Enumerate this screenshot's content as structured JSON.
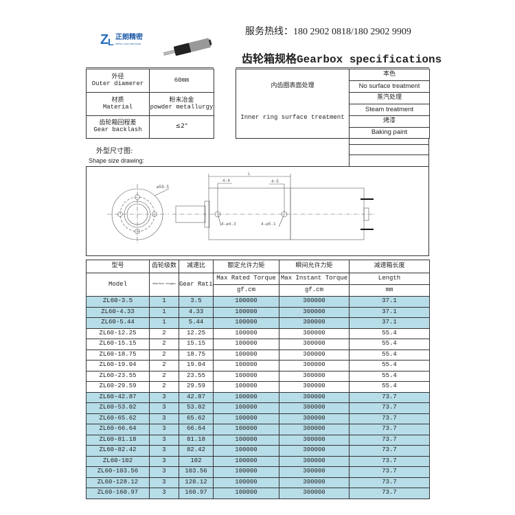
{
  "header": {
    "logo_text": "正朗精密",
    "logo_sub": "ZHENG LANG PRECISION",
    "hotline": "服务热线：180 2902 0818/180 2902 9909",
    "title": "齿轮箱规格Gearbox specifications"
  },
  "specs": [
    {
      "cn": "外径",
      "en": "Outer diamerer",
      "value": "60mm",
      "value_en": ""
    },
    {
      "cn": "材质",
      "en": "Material",
      "value": "粉末冶金",
      "value_en": "powder metallurgy"
    },
    {
      "cn": "齿轮箱回程差",
      "en": "Gear backlash",
      "value": "≤2°",
      "value_en": ""
    }
  ],
  "surface": {
    "cn": "内齿圈表面处理",
    "en": "Inner ring surface treatment",
    "options": [
      "本色",
      "No surface treatment",
      "蒸汽处理",
      "Steam treatment",
      "烤漆",
      "Baking paint"
    ]
  },
  "drawing": {
    "cn": "外型尺寸图:",
    "en": "Shape size drawing:",
    "dims": {
      "dia": "⌀59.5",
      "L": "L",
      "a": "4-4",
      "b": "4-5",
      "h1": "4-⌀4.3",
      "h2": "4-⌀5.1"
    }
  },
  "table": {
    "headers_cn": [
      "型号",
      "齿轮级数",
      "减速比",
      "额定允许力矩",
      "瞬间允许力矩",
      "减速箱长度"
    ],
    "headers_en": [
      "Model",
      "Gearbox stages",
      "Gear Ratio",
      "Max Rated Torque",
      "Max Instant Torque",
      "Length"
    ],
    "units": [
      "gf.cm",
      "gf.cm",
      "mm"
    ],
    "highlight_color": "#b7dde8",
    "rows": [
      [
        "ZL60-3.5",
        "1",
        "3.5",
        "100000",
        "300000",
        "37.1"
      ],
      [
        "ZL60-4.33",
        "1",
        "4.33",
        "100000",
        "300000",
        "37.1"
      ],
      [
        "ZL60-5.44",
        "1",
        "5.44",
        "100000",
        "300000",
        "37.1"
      ],
      [
        "ZL60-12.25",
        "2",
        "12.25",
        "100000",
        "300000",
        "55.4"
      ],
      [
        "ZL60-15.15",
        "2",
        "15.15",
        "100000",
        "300000",
        "55.4"
      ],
      [
        "ZL60-18.75",
        "2",
        "18.75",
        "100000",
        "300000",
        "55.4"
      ],
      [
        "ZL60-19.04",
        "2",
        "19.04",
        "100000",
        "300000",
        "55.4"
      ],
      [
        "ZL60-23.55",
        "2",
        "23.55",
        "100000",
        "300000",
        "55.4"
      ],
      [
        "ZL60-29.59",
        "2",
        "29.59",
        "100000",
        "300000",
        "55.4"
      ],
      [
        "ZL60-42.87",
        "3",
        "42.87",
        "100000",
        "300000",
        "73.7"
      ],
      [
        "ZL60-53.02",
        "3",
        "53.02",
        "100000",
        "300000",
        "73.7"
      ],
      [
        "ZL60-65.62",
        "3",
        "65.62",
        "100000",
        "300000",
        "73.7"
      ],
      [
        "ZL60-66.64",
        "3",
        "66.64",
        "100000",
        "300000",
        "73.7"
      ],
      [
        "ZL60-81.18",
        "3",
        "81.18",
        "100000",
        "300000",
        "73.7"
      ],
      [
        "ZL60-82.42",
        "3",
        "82.42",
        "100000",
        "300000",
        "73.7"
      ],
      [
        "ZL60-102",
        "3",
        "102",
        "100000",
        "300000",
        "73.7"
      ],
      [
        "ZL60-103.56",
        "3",
        "103.56",
        "100000",
        "300000",
        "73.7"
      ],
      [
        "ZL60-128.12",
        "3",
        "128.12",
        "100000",
        "300000",
        "73.7"
      ],
      [
        "ZL60-160.97",
        "3",
        "160.97",
        "100000",
        "300000",
        "73.7"
      ]
    ]
  }
}
